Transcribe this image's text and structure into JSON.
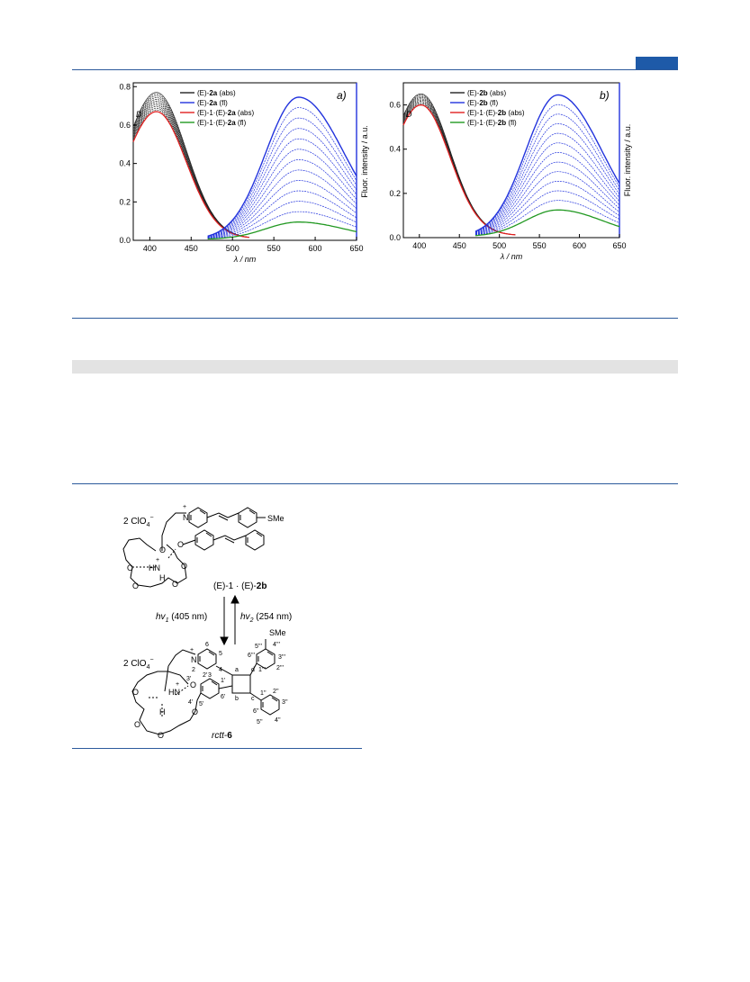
{
  "page": {
    "accent_color": "#1e5aa8",
    "rule_color": "#2c5a9c"
  },
  "chart_data": [
    {
      "type": "line",
      "panel_label": "a)",
      "xlabel": "λ / nm",
      "ylabel_left": "D",
      "ylabel_right": "Fluor. intensity / a.u.",
      "xlim": [
        380,
        650
      ],
      "ylim": [
        0,
        0.82
      ],
      "xticks": [
        "400",
        "450",
        "500",
        "550",
        "600",
        "650"
      ],
      "yticks": [
        "0.0",
        "0.2",
        "0.4",
        "0.6",
        "0.8"
      ],
      "legend": [
        {
          "prefix": "(E)-",
          "bold": "2a",
          "suffix": " (abs)",
          "color": "#222222"
        },
        {
          "prefix": "(E)-",
          "bold": "2a",
          "suffix": " (fl)",
          "color": "#2233dd"
        },
        {
          "prefix": "(E)-1·(E)-",
          "bold": "2a",
          "suffix": " (abs)",
          "color": "#e02020"
        },
        {
          "prefix": "(E)-1·(E)-",
          "bold": "2a",
          "suffix": " (fl)",
          "color": "#229922"
        }
      ],
      "absorption": {
        "peak_x": 408,
        "initial_peak": 0.76,
        "final_peak": 0.66,
        "series_count": 12
      },
      "fluorescence": {
        "peak_x": 580,
        "initial_peak": 0.74,
        "final_peak": 0.09,
        "series_count": 13
      }
    },
    {
      "type": "line",
      "panel_label": "b)",
      "xlabel": "λ / nm",
      "ylabel_left": "D",
      "ylabel_right": "Fluor. intensity / a.u.",
      "xlim": [
        380,
        650
      ],
      "ylim": [
        0,
        0.7
      ],
      "xticks": [
        "400",
        "450",
        "500",
        "550",
        "600",
        "650"
      ],
      "yticks": [
        "0.0",
        "0.2",
        "0.4",
        "0.6"
      ],
      "legend": [
        {
          "prefix": "(E)-",
          "bold": "2b",
          "suffix": " (abs)",
          "color": "#222222"
        },
        {
          "prefix": "(E)-",
          "bold": "2b",
          "suffix": " (fl)",
          "color": "#2233dd"
        },
        {
          "prefix": "(E)-1·(E)-",
          "bold": "2b",
          "suffix": " (abs)",
          "color": "#e02020"
        },
        {
          "prefix": "(E)-1·(E)-",
          "bold": "2b",
          "suffix": " (fl)",
          "color": "#229922"
        }
      ],
      "absorption": {
        "peak_x": 402,
        "initial_peak": 0.64,
        "final_peak": 0.59,
        "series_count": 10
      },
      "fluorescence": {
        "peak_x": 573,
        "initial_peak": 0.64,
        "final_peak": 0.12,
        "series_count": 13
      }
    }
  ],
  "scheme": {
    "counter_ion_top": "2 ClO",
    "counter_ion_bottom": "2 ClO",
    "smiles_group": "SMe",
    "complex_label_prefix": "(E)-1 · (E)-",
    "complex_label_bold": "2b",
    "forward": {
      "hv": "hv",
      "sub": "1",
      "wavelength": "(405 nm)"
    },
    "backward": {
      "hv": "hv",
      "sub": "2",
      "wavelength": "(254 nm)"
    },
    "product_label": "rctt-6",
    "atom_labels": [
      "6",
      "5",
      "2",
      "3",
      "4",
      "a",
      "d",
      "b",
      "c",
      "1'",
      "2'",
      "3'",
      "4'",
      "5'",
      "6'",
      "1''",
      "2''",
      "3''",
      "4''",
      "5''",
      "6''",
      "1'''",
      "2'''",
      "3'''",
      "4'''",
      "5'''",
      "6'''"
    ]
  }
}
